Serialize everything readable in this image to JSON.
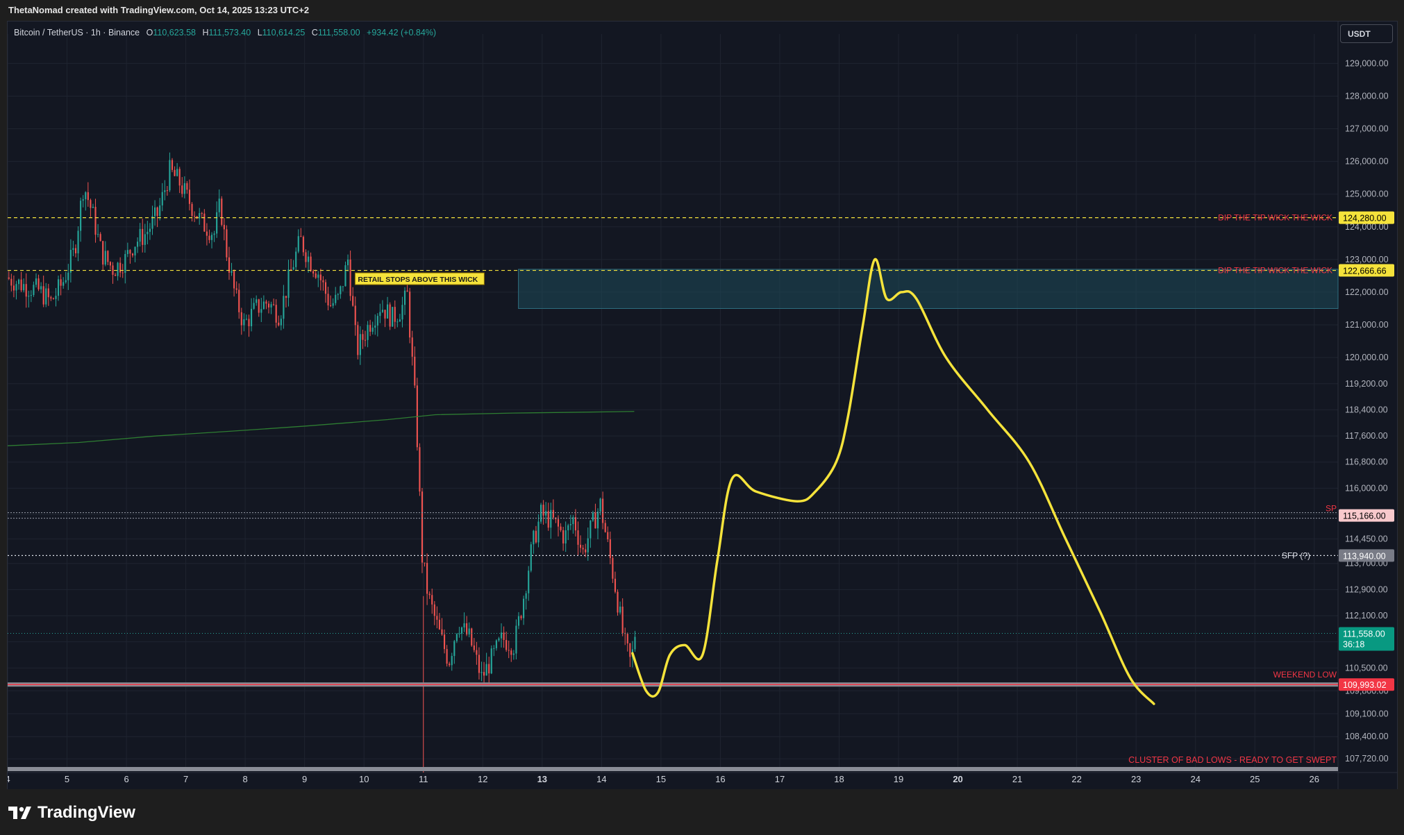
{
  "credit": "ThetaNomad created with TradingView.com, Oct 14, 2025 13:23 UTC+2",
  "brand": "TradingView",
  "currency_button": "USDT",
  "legend": {
    "symbol": "Bitcoin / TetherUS · 1h · Binance",
    "open_label": "O",
    "open": "110,623.58",
    "high_label": "H",
    "high": "111,573.40",
    "low_label": "L",
    "low": "110,614.25",
    "close_label": "C",
    "close": "111,558.00",
    "change": "+934.42 (+0.84%)"
  },
  "colors": {
    "background": "#131722",
    "up": "#26a69a",
    "down": "#ef5350",
    "projection": "#f5e33b",
    "ma": "#2e7d32",
    "zone": "#1d4a5a",
    "red_label": "#f23645"
  },
  "chart_data": {
    "type": "candlestick",
    "title": "Bitcoin / TetherUS · 1h · Binance",
    "xlabel": "",
    "ylabel": "",
    "ylim": [
      107300,
      129900
    ],
    "y_ticks": [
      "129,000.00",
      "128,000.00",
      "127,000.00",
      "126,000.00",
      "125,000.00",
      "124,000.00",
      "123,000.00",
      "122,000.00",
      "121,000.00",
      "120,000.00",
      "119,200.00",
      "118,400.00",
      "117,600.00",
      "116,800.00",
      "116,000.00",
      "115,200.00",
      "114,450.00",
      "113,700.00",
      "112,900.00",
      "112,100.00",
      "111,300.00",
      "110,500.00",
      "109,800.00",
      "109,100.00",
      "108,400.00",
      "107,720.00"
    ],
    "x_ticks": [
      "4",
      "5",
      "6",
      "7",
      "8",
      "9",
      "10",
      "11",
      "12",
      "13",
      "14",
      "15",
      "16",
      "17",
      "18",
      "19",
      "20",
      "21",
      "22",
      "23",
      "24",
      "25",
      "26"
    ],
    "x_tick_bold": [
      "13",
      "20"
    ],
    "xlim": [
      4,
      26.4
    ],
    "ohlc_waypoints": [
      {
        "t": 4.0,
        "p": 122450
      },
      {
        "t": 4.3,
        "p": 122200
      },
      {
        "t": 4.55,
        "p": 122050
      },
      {
        "t": 4.75,
        "p": 121700
      },
      {
        "t": 4.95,
        "p": 122300
      },
      {
        "t": 5.15,
        "p": 123300
      },
      {
        "t": 5.3,
        "p": 125300
      },
      {
        "t": 5.45,
        "p": 124400
      },
      {
        "t": 5.6,
        "p": 123200
      },
      {
        "t": 5.8,
        "p": 122700
      },
      {
        "t": 6.0,
        "p": 123000
      },
      {
        "t": 6.15,
        "p": 123500
      },
      {
        "t": 6.35,
        "p": 123800
      },
      {
        "t": 6.55,
        "p": 124400
      },
      {
        "t": 6.75,
        "p": 125700
      },
      {
        "t": 6.9,
        "p": 125400
      },
      {
        "t": 7.1,
        "p": 124700
      },
      {
        "t": 7.3,
        "p": 124100
      },
      {
        "t": 7.5,
        "p": 123800
      },
      {
        "t": 7.6,
        "p": 124700
      },
      {
        "t": 7.7,
        "p": 123300
      },
      {
        "t": 7.85,
        "p": 121900
      },
      {
        "t": 8.0,
        "p": 121000
      },
      {
        "t": 8.2,
        "p": 121500
      },
      {
        "t": 8.4,
        "p": 121700
      },
      {
        "t": 8.6,
        "p": 121300
      },
      {
        "t": 8.8,
        "p": 122700
      },
      {
        "t": 8.95,
        "p": 123600
      },
      {
        "t": 9.1,
        "p": 123000
      },
      {
        "t": 9.25,
        "p": 122600
      },
      {
        "t": 9.45,
        "p": 121600
      },
      {
        "t": 9.6,
        "p": 121800
      },
      {
        "t": 9.75,
        "p": 123000
      },
      {
        "t": 9.9,
        "p": 120200
      },
      {
        "t": 10.1,
        "p": 121000
      },
      {
        "t": 10.3,
        "p": 121600
      },
      {
        "t": 10.5,
        "p": 121200
      },
      {
        "t": 10.65,
        "p": 121500
      },
      {
        "t": 10.75,
        "p": 121900
      },
      {
        "t": 10.9,
        "p": 118200
      },
      {
        "t": 11.0,
        "p": 113900
      },
      {
        "t": 11.1,
        "p": 112700
      },
      {
        "t": 11.3,
        "p": 111500
      },
      {
        "t": 11.45,
        "p": 110700
      },
      {
        "t": 11.6,
        "p": 111900
      },
      {
        "t": 11.8,
        "p": 111400
      },
      {
        "t": 12.0,
        "p": 110200
      },
      {
        "t": 12.15,
        "p": 110700
      },
      {
        "t": 12.35,
        "p": 111400
      },
      {
        "t": 12.55,
        "p": 111200
      },
      {
        "t": 12.7,
        "p": 112600
      },
      {
        "t": 12.85,
        "p": 114200
      },
      {
        "t": 13.0,
        "p": 115200
      },
      {
        "t": 13.2,
        "p": 115000
      },
      {
        "t": 13.4,
        "p": 114500
      },
      {
        "t": 13.55,
        "p": 115100
      },
      {
        "t": 13.7,
        "p": 114000
      },
      {
        "t": 13.85,
        "p": 114800
      },
      {
        "t": 14.0,
        "p": 115500
      },
      {
        "t": 14.1,
        "p": 114500
      },
      {
        "t": 14.25,
        "p": 113000
      },
      {
        "t": 14.4,
        "p": 111300
      },
      {
        "t": 14.52,
        "p": 110600
      },
      {
        "t": 14.58,
        "p": 111558
      }
    ],
    "ma_line": [
      {
        "t": 4.0,
        "p": 117300
      },
      {
        "t": 5.2,
        "p": 117400
      },
      {
        "t": 6.5,
        "p": 117600
      },
      {
        "t": 7.8,
        "p": 117750
      },
      {
        "t": 9.0,
        "p": 117900
      },
      {
        "t": 10.4,
        "p": 118100
      },
      {
        "t": 11.2,
        "p": 118250
      },
      {
        "t": 12.5,
        "p": 118300
      },
      {
        "t": 13.8,
        "p": 118330
      },
      {
        "t": 14.55,
        "p": 118350
      }
    ],
    "projection_path": [
      {
        "t": 14.52,
        "p": 110950
      },
      {
        "t": 14.75,
        "p": 109800
      },
      {
        "t": 14.95,
        "p": 109750
      },
      {
        "t": 15.15,
        "p": 110900
      },
      {
        "t": 15.4,
        "p": 111200
      },
      {
        "t": 15.7,
        "p": 110900
      },
      {
        "t": 15.95,
        "p": 113800
      },
      {
        "t": 16.2,
        "p": 116300
      },
      {
        "t": 16.6,
        "p": 115900
      },
      {
        "t": 17.3,
        "p": 115600
      },
      {
        "t": 17.6,
        "p": 115900
      },
      {
        "t": 17.95,
        "p": 116800
      },
      {
        "t": 18.15,
        "p": 118200
      },
      {
        "t": 18.4,
        "p": 121000
      },
      {
        "t": 18.6,
        "p": 123000
      },
      {
        "t": 18.8,
        "p": 121800
      },
      {
        "t": 19.05,
        "p": 122000
      },
      {
        "t": 19.3,
        "p": 121800
      },
      {
        "t": 19.8,
        "p": 120000
      },
      {
        "t": 20.5,
        "p": 118400
      },
      {
        "t": 21.2,
        "p": 116800
      },
      {
        "t": 21.8,
        "p": 114500
      },
      {
        "t": 22.4,
        "p": 112200
      },
      {
        "t": 22.9,
        "p": 110200
      },
      {
        "t": 23.3,
        "p": 109400
      }
    ],
    "horizontal_levels": [
      {
        "price": 124280,
        "label": "DIP THE TIP WICK THE WICK",
        "value_label": "124,280.00",
        "style": "dashed-yellow"
      },
      {
        "price": 122666.66,
        "label": "DIP THE TIP WICK THE WICK",
        "value_label": "122,666.66",
        "style": "dashed-yellow"
      },
      {
        "price": 115166,
        "label": "SP",
        "value_label": "115,166.00",
        "style": "double-dotted"
      },
      {
        "price": 113940,
        "label": "SFP (?)",
        "value_label": "113,940.00",
        "style": "dotted-white"
      },
      {
        "price": 111558,
        "label": "",
        "value_label": "111,558.00",
        "sub_label": "36:18",
        "style": "current"
      },
      {
        "price": 109993.02,
        "label": "WEEKEND LOW",
        "value_label": "109,993.02",
        "style": "solid-red-grey"
      }
    ],
    "zone": {
      "price_top": 122700,
      "price_bottom": 121500,
      "t_start": 12.6,
      "t_end": 26.4
    },
    "annotations": {
      "retail_wick": "RETAIL STOPS ABOVE THIS WICK",
      "cluster": "CLUSTER OF BAD LOWS - READY TO GET SWEPT"
    },
    "grid": true,
    "legend_position": "top-left"
  }
}
